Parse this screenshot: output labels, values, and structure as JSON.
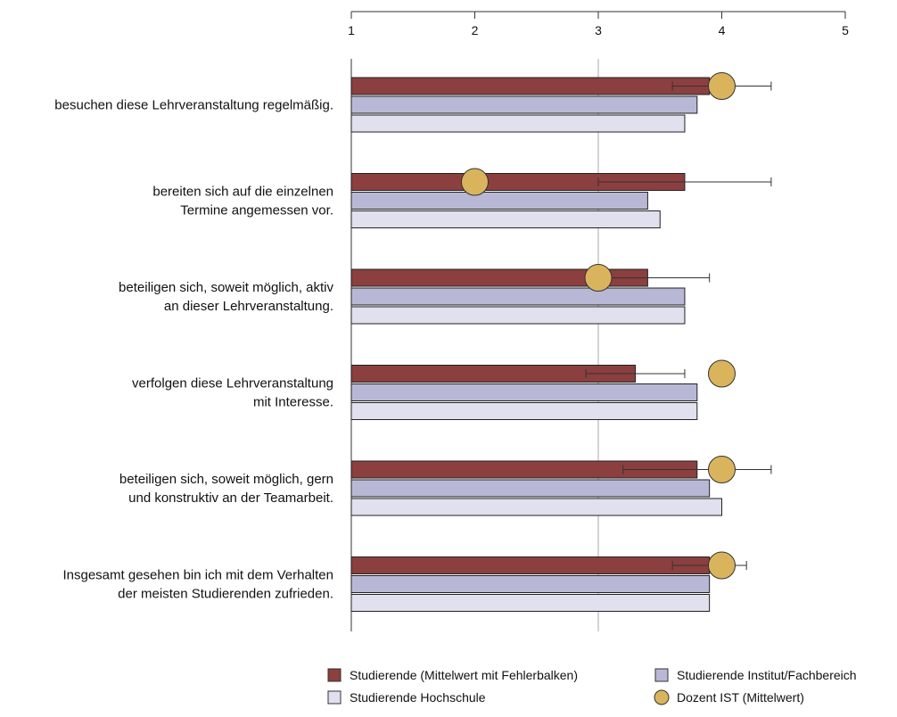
{
  "chart_data": {
    "type": "bar",
    "orientation": "horizontal",
    "xlim": [
      1,
      5
    ],
    "x_ticks": [
      "1",
      "2",
      "3",
      "4",
      "5"
    ],
    "reference_line": 3,
    "categories": [
      [
        "besuchen diese Lehrveranstaltung regelmäßig."
      ],
      [
        "bereiten sich auf die einzelnen",
        "Termine angemessen vor."
      ],
      [
        "beteiligen sich, soweit möglich, aktiv",
        "an dieser Lehrveranstaltung."
      ],
      [
        "verfolgen diese Lehrveranstaltung",
        "mit Interesse."
      ],
      [
        "beteiligen sich, soweit möglich, gern",
        "und konstruktiv an der Teamarbeit."
      ],
      [
        "Insgesamt gesehen bin ich mit dem Verhalten",
        "der meisten Studierenden zufrieden."
      ]
    ],
    "series": [
      {
        "name": "Studierende (Mittelwert mit Fehlerbalken)",
        "kind": "bar",
        "color": "#8b3f3f",
        "values": [
          3.9,
          3.7,
          3.4,
          3.3,
          3.8,
          3.9
        ],
        "error_low": [
          3.6,
          3.0,
          3.1,
          2.9,
          3.2,
          3.6
        ],
        "error_high": [
          4.4,
          4.4,
          3.9,
          3.7,
          4.4,
          4.2
        ]
      },
      {
        "name": "Studierende Institut/Fachbereich",
        "kind": "bar",
        "color": "#b8b8d6",
        "values": [
          3.8,
          3.4,
          3.7,
          3.8,
          3.9,
          3.9
        ]
      },
      {
        "name": "Studierende Hochschule",
        "kind": "bar",
        "color": "#e0e0ee",
        "values": [
          3.7,
          3.5,
          3.7,
          3.8,
          4.0,
          3.9
        ]
      },
      {
        "name": "Dozent IST (Mittelwert)",
        "kind": "marker",
        "color": "#d9b45c",
        "values": [
          4.0,
          2.0,
          3.0,
          4.0,
          4.0,
          4.0
        ]
      }
    ],
    "legend_order": [
      0,
      1,
      2,
      3
    ],
    "legend_position": "bottom-right"
  }
}
